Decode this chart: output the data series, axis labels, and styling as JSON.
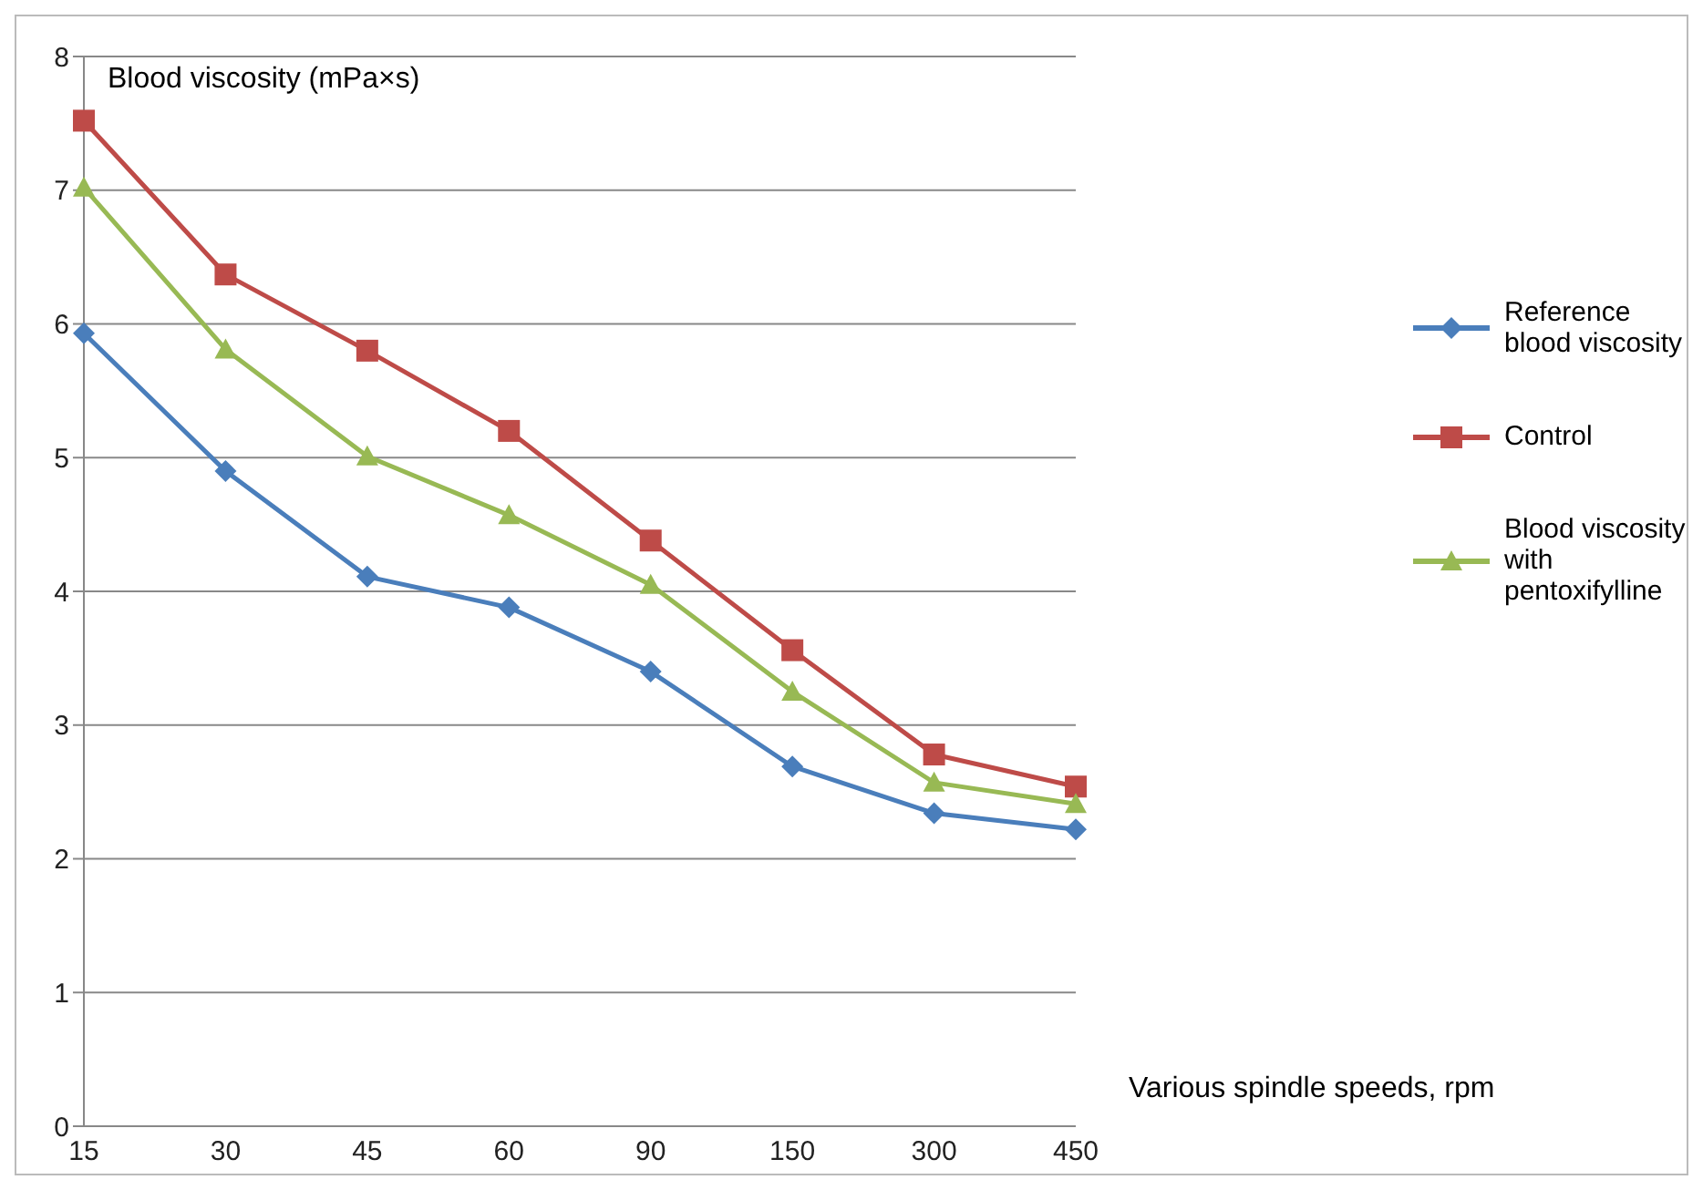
{
  "chart_data": {
    "type": "line",
    "ylabel": "Blood viscosity (mPa×s)",
    "xlabel": "Various spindle speeds, rpm",
    "categories": [
      "15",
      "30",
      "45",
      "60",
      "90",
      "150",
      "300",
      "450"
    ],
    "series": [
      {
        "name": "Reference blood viscosity",
        "color": "#4a7ebb",
        "marker": "diamond",
        "values": [
          5.93,
          4.9,
          4.11,
          3.88,
          3.4,
          2.69,
          2.34,
          2.22
        ]
      },
      {
        "name": "Control",
        "color": "#be4b48",
        "marker": "square",
        "values": [
          7.52,
          6.37,
          5.8,
          5.2,
          4.38,
          3.56,
          2.78,
          2.54
        ]
      },
      {
        "name": "Blood viscosity with pentoxifylline",
        "color": "#98b954",
        "marker": "triangle",
        "values": [
          7.02,
          5.81,
          5.01,
          4.57,
          4.05,
          3.25,
          2.57,
          2.41
        ]
      }
    ],
    "ylim": [
      0,
      8
    ],
    "yticks": [
      0,
      1,
      2,
      3,
      4,
      5,
      6,
      7,
      8
    ],
    "grid": "y",
    "legend": "right"
  }
}
